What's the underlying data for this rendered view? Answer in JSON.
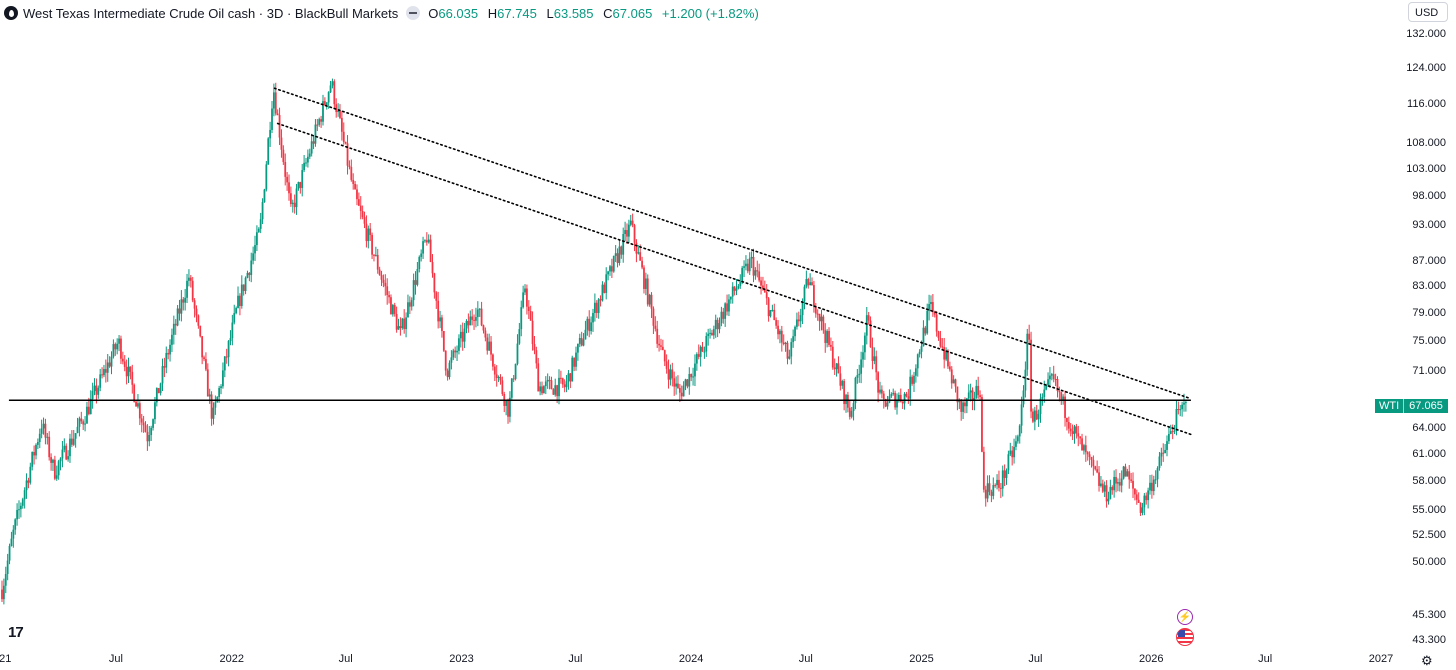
{
  "header": {
    "title": "West Texas Intermediate Crude Oil cash · 3D · BlackBull Markets",
    "open_label": "O",
    "open": "66.035",
    "high_label": "H",
    "high": "67.745",
    "low_label": "L",
    "low": "63.585",
    "close_label": "C",
    "close": "67.065",
    "change": "+1.200 (+1.82%)"
  },
  "currency_button": "USD",
  "price_tag": {
    "symbol": "WTI",
    "value": "67.065"
  },
  "colors": {
    "up": "#089981",
    "down": "#f23645",
    "trendline": "#000000",
    "accent": "#089981"
  },
  "icons": [
    "tradingview-logo-icon",
    "lightning-icon",
    "us-flag-icon",
    "gear-icon"
  ],
  "tv_logo_text": "17",
  "chart_data": {
    "type": "candlestick",
    "scale": "log",
    "ylim": [
      42.5,
      136
    ],
    "xlim": [
      "2021-01-01",
      "2027-01-01"
    ],
    "grid": false,
    "y_ticks": [
      "132.000",
      "124.000",
      "116.000",
      "108.000",
      "103.000",
      "98.000",
      "93.000",
      "87.000",
      "83.000",
      "79.000",
      "75.000",
      "71.000",
      "64.000",
      "61.000",
      "58.000",
      "55.000",
      "52.500",
      "50.000",
      "45.300",
      "43.300"
    ],
    "x_ticks": [
      {
        "label": "021",
        "date": "2021-01-01"
      },
      {
        "label": "Jul",
        "date": "2021-07-01"
      },
      {
        "label": "2022",
        "date": "2022-01-01"
      },
      {
        "label": "Jul",
        "date": "2022-07-01"
      },
      {
        "label": "2023",
        "date": "2023-01-01"
      },
      {
        "label": "Jul",
        "date": "2023-07-01"
      },
      {
        "label": "2024",
        "date": "2024-01-01"
      },
      {
        "label": "Jul",
        "date": "2024-07-01"
      },
      {
        "label": "2025",
        "date": "2025-01-01"
      },
      {
        "label": "Jul",
        "date": "2025-07-01"
      },
      {
        "label": "2026",
        "date": "2026-01-01"
      },
      {
        "label": "Jul",
        "date": "2026-07-01"
      },
      {
        "label": "2027",
        "date": "2027-01-01"
      }
    ],
    "price_path": [
      [
        "2021-01-01",
        47.5
      ],
      [
        "2021-01-20",
        53
      ],
      [
        "2021-03-05",
        64.5
      ],
      [
        "2021-03-25",
        59
      ],
      [
        "2021-05-10",
        65
      ],
      [
        "2021-07-05",
        75
      ],
      [
        "2021-08-20",
        63
      ],
      [
        "2021-09-20",
        73
      ],
      [
        "2021-10-25",
        84.5
      ],
      [
        "2021-12-02",
        65
      ],
      [
        "2022-01-10",
        80
      ],
      [
        "2022-02-15",
        92
      ],
      [
        "2022-03-08",
        120
      ],
      [
        "2022-04-05",
        95
      ],
      [
        "2022-06-08",
        121
      ],
      [
        "2022-07-15",
        98
      ],
      [
        "2022-08-15",
        88
      ],
      [
        "2022-09-26",
        76
      ],
      [
        "2022-11-07",
        91
      ],
      [
        "2022-12-09",
        71
      ],
      [
        "2023-01-25",
        80
      ],
      [
        "2023-03-17",
        66
      ],
      [
        "2023-04-12",
        83
      ],
      [
        "2023-05-04",
        69
      ],
      [
        "2023-06-15",
        69
      ],
      [
        "2023-07-10",
        75
      ],
      [
        "2023-09-27",
        93
      ],
      [
        "2023-11-16",
        73
      ],
      [
        "2023-12-13",
        68
      ],
      [
        "2024-01-20",
        74
      ],
      [
        "2024-04-05",
        87
      ],
      [
        "2024-06-04",
        72.5
      ],
      [
        "2024-07-05",
        84
      ],
      [
        "2024-09-10",
        65.5
      ],
      [
        "2024-10-07",
        78
      ],
      [
        "2024-10-28",
        67
      ],
      [
        "2024-12-10",
        68
      ],
      [
        "2025-01-15",
        80
      ],
      [
        "2025-03-05",
        66
      ],
      [
        "2025-04-05",
        69
      ],
      [
        "2025-04-08",
        57
      ],
      [
        "2025-05-05",
        57.5
      ],
      [
        "2025-06-05",
        63
      ],
      [
        "2025-06-20",
        77
      ],
      [
        "2025-06-25",
        64.5
      ],
      [
        "2025-07-28",
        70
      ],
      [
        "2025-09-03",
        63
      ],
      [
        "2025-10-20",
        56.5
      ],
      [
        "2025-11-20",
        59
      ],
      [
        "2025-12-16",
        55.2
      ],
      [
        "2026-01-15",
        60
      ],
      [
        "2026-02-09",
        65
      ],
      [
        "2026-02-27",
        67.065
      ]
    ],
    "support_line": {
      "y": 67.3,
      "x": [
        "2021-01-12",
        "2026-03-05"
      ]
    },
    "trendlines": [
      {
        "name": "upper",
        "from": [
          "2022-03-10",
          119.5
        ],
        "to": [
          "2026-03-01",
          67.6
        ]
      },
      {
        "name": "lower",
        "from": [
          "2022-03-15",
          112
        ],
        "to": [
          "2026-03-05",
          63.2
        ]
      }
    ],
    "last_price": 67.065
  }
}
